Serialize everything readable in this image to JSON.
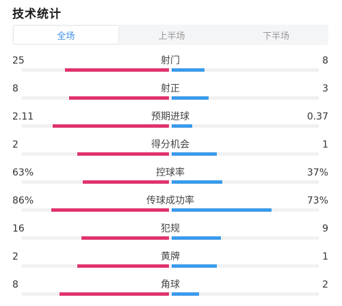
{
  "header": {
    "title": "技术统计"
  },
  "tabs": [
    {
      "label": "全场",
      "active": true
    },
    {
      "label": "上半场",
      "active": false
    },
    {
      "label": "下半场",
      "active": false
    }
  ],
  "colors": {
    "home_bar": "#e0336b",
    "away_bar": "#3a9bea",
    "active_tab_text": "#3a8ee6"
  },
  "stats": [
    {
      "label": "射门",
      "home": "25",
      "away": "8",
      "home_share": 0.76,
      "away_share": 0.24
    },
    {
      "label": "射正",
      "home": "8",
      "away": "3",
      "home_share": 0.73,
      "away_share": 0.27
    },
    {
      "label": "预期进球",
      "home": "2.11",
      "away": "0.37",
      "home_share": 0.85,
      "away_share": 0.15
    },
    {
      "label": "得分机会",
      "home": "2",
      "away": "1",
      "home_share": 0.67,
      "away_share": 0.33
    },
    {
      "label": "控球率",
      "home": "63%",
      "away": "37%",
      "home_share": 0.63,
      "away_share": 0.37
    },
    {
      "label": "传球成功率",
      "home": "86%",
      "away": "73%",
      "home_share": 0.86,
      "away_share": 0.73
    },
    {
      "label": "犯规",
      "home": "16",
      "away": "9",
      "home_share": 0.64,
      "away_share": 0.36
    },
    {
      "label": "黄牌",
      "home": "2",
      "away": "1",
      "home_share": 0.67,
      "away_share": 0.33
    },
    {
      "label": "角球",
      "home": "8",
      "away": "2",
      "home_share": 0.8,
      "away_share": 0.2
    }
  ]
}
